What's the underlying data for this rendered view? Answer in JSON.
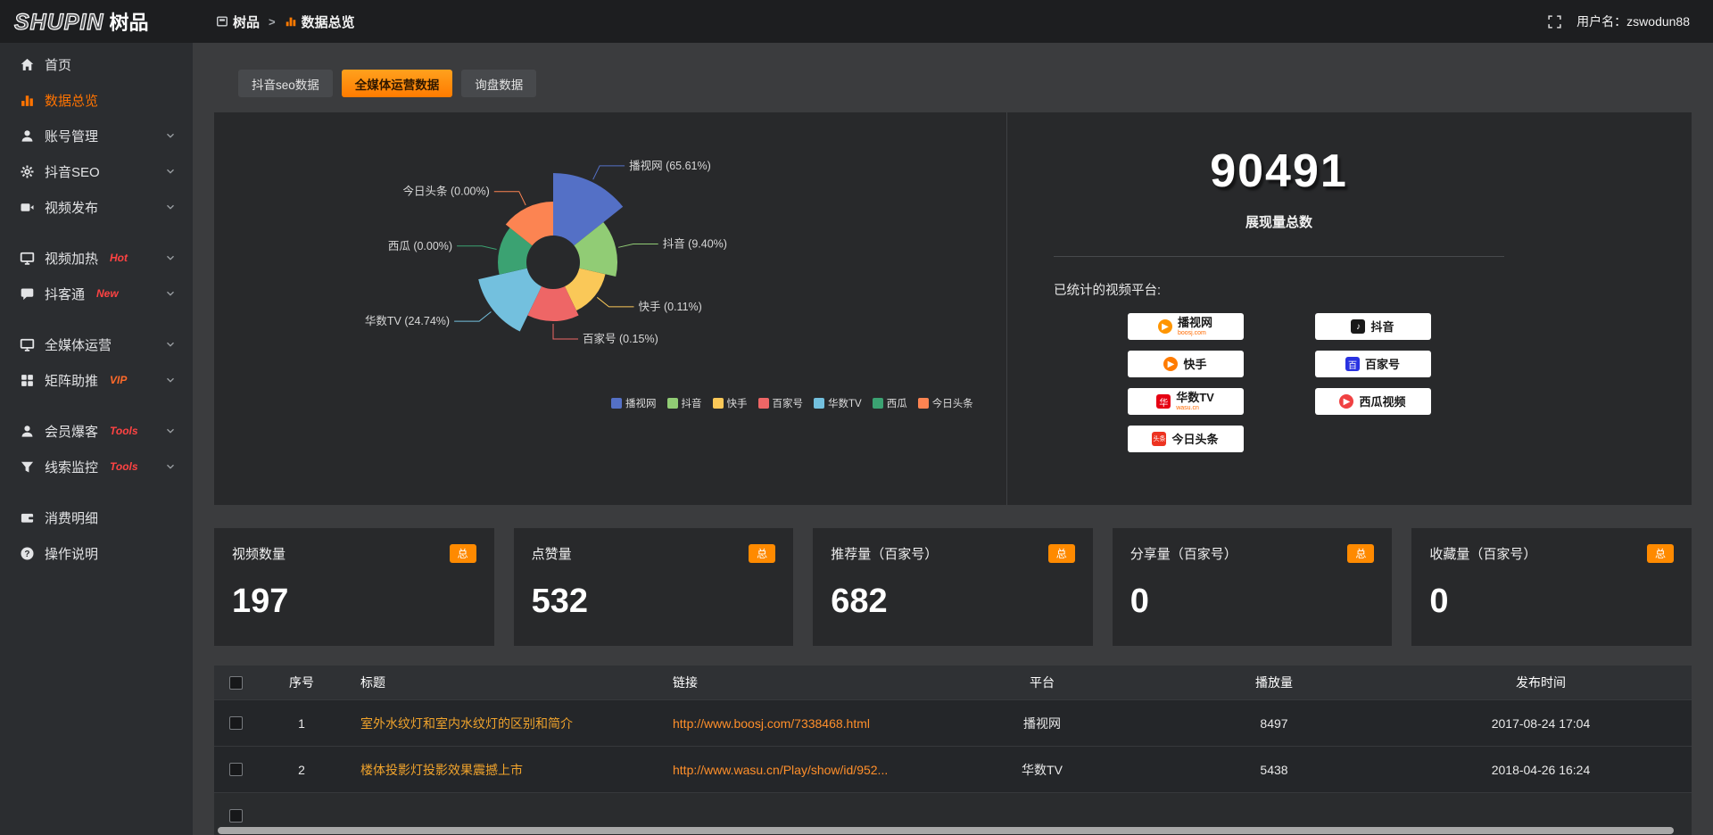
{
  "topbar": {
    "logo_en": "SHUPIN",
    "logo_cn": "树品",
    "breadcrumb": [
      {
        "key": "home",
        "label": "树品"
      },
      {
        "key": "data-overview",
        "label": "数据总览"
      }
    ],
    "breadcrumb_separator": ">",
    "username": "用户名：zswodun88"
  },
  "sidebar": {
    "groups": [
      {
        "items": [
          {
            "key": "home",
            "label": "首页",
            "icon": "home"
          },
          {
            "key": "data-overview",
            "label": "数据总览",
            "icon": "chart",
            "active": true
          },
          {
            "key": "account-management",
            "label": "账号管理",
            "icon": "user",
            "chevron": true
          },
          {
            "key": "douyin-seo",
            "label": "抖音SEO",
            "icon": "gear",
            "chevron": true
          },
          {
            "key": "video-publish",
            "label": "视频发布",
            "icon": "video",
            "chevron": true
          }
        ]
      },
      {
        "items": [
          {
            "key": "video-heating",
            "label": "视频加热",
            "icon": "monitor",
            "badge": "Hot",
            "badge_color": "#ff4343",
            "chevron": true
          },
          {
            "key": "douketong",
            "label": "抖客通",
            "icon": "chat",
            "badge": "New",
            "badge_color": "#ff4343",
            "chevron": true
          }
        ]
      },
      {
        "items": [
          {
            "key": "media-operation",
            "label": "全媒体运营",
            "icon": "monitor",
            "chevron": true
          },
          {
            "key": "matrix-boost",
            "label": "矩阵助推",
            "icon": "grid",
            "badge": "VIP",
            "badge_color": "#ff6a2a",
            "chevron": true
          }
        ]
      },
      {
        "items": [
          {
            "key": "member-burst",
            "label": "会员爆客",
            "icon": "user",
            "badge": "Tools",
            "badge_color": "#ff4343",
            "chevron": true
          },
          {
            "key": "lead-monitor",
            "label": "线索监控",
            "icon": "filter",
            "badge": "Tools",
            "badge_color": "#ff4343",
            "chevron": true
          }
        ]
      },
      {
        "items": [
          {
            "key": "consumption-detail",
            "label": "消费明细",
            "icon": "wallet"
          },
          {
            "key": "operation-guide",
            "label": "操作说明",
            "icon": "help"
          }
        ]
      }
    ]
  },
  "tabs": [
    {
      "key": "douyin-seo-data",
      "label": "抖音seo数据"
    },
    {
      "key": "media-operation-data",
      "label": "全媒体运营数据",
      "active": true
    },
    {
      "key": "inquiry-data",
      "label": "询盘数据"
    }
  ],
  "chart_data": {
    "type": "pie",
    "variant": "rose",
    "title": "",
    "categories": [
      "播视网",
      "抖音",
      "快手",
      "百家号",
      "华数TV",
      "西瓜",
      "今日头条"
    ],
    "values": [
      65.61,
      9.4,
      0.11,
      0.15,
      24.74,
      0.0,
      0.0
    ],
    "unit": "%",
    "colors": [
      "#5470c6",
      "#91cc75",
      "#fac858",
      "#ee6666",
      "#73c0de",
      "#3ba272",
      "#fc8452"
    ],
    "labels": [
      "播视网 (65.61%)",
      "抖音 (9.40%)",
      "快手 (0.11%)",
      "百家号 (0.15%)",
      "华数TV (24.74%)",
      "西瓜 (0.00%)",
      "今日头条 (0.00%)"
    ],
    "legend": [
      "播视网",
      "抖音",
      "快手",
      "百家号",
      "华数TV",
      "西瓜",
      "今日头条"
    ],
    "legend_position": "bottom",
    "radius_hints": [
      100,
      72,
      60,
      66,
      86,
      62,
      68
    ]
  },
  "summary": {
    "total": "90491",
    "total_label": "展现量总数",
    "platforms_label": "已统计的视频平台:",
    "platforms": [
      {
        "name": "播视网",
        "sub": "boosj.com",
        "icon_char": "▶",
        "icon_bg": "#ff9500",
        "icon_shape": "circle"
      },
      {
        "name": "抖音",
        "icon_char": "♪",
        "icon_bg": "#1a1a1a",
        "icon_shape": "square"
      },
      {
        "name": "快手",
        "icon_char": "▶",
        "icon_bg": "#ff7b00",
        "icon_shape": "circle"
      },
      {
        "name": "百家号",
        "icon_char": "百",
        "icon_bg": "#2932e1",
        "icon_shape": "square"
      },
      {
        "name": "华数TV",
        "sub": "wasu.cn",
        "icon_char": "华",
        "icon_bg": "#e60012",
        "icon_shape": "square"
      },
      {
        "name": "西瓜视频",
        "icon_char": "▶",
        "icon_bg": "#f04142",
        "icon_shape": "circle"
      },
      {
        "name": "今日头条",
        "icon_char": "头条",
        "icon_bg": "#ed3321",
        "icon_shape": "square"
      }
    ]
  },
  "stat_cards": [
    {
      "label": "视频数量",
      "badge": "总",
      "value": "197"
    },
    {
      "label": "点赞量",
      "badge": "总",
      "value": "532"
    },
    {
      "label": "推荐量（百家号）",
      "badge": "总",
      "value": "682"
    },
    {
      "label": "分享量（百家号）",
      "badge": "总",
      "value": "0"
    },
    {
      "label": "收藏量（百家号）",
      "badge": "总",
      "value": "0"
    }
  ],
  "table": {
    "headers": [
      "序号",
      "标题",
      "链接",
      "平台",
      "播放量",
      "发布时间"
    ],
    "rows": [
      {
        "index": "1",
        "title": "室外水纹灯和室内水纹灯的区别和简介",
        "link": "http://www.boosj.com/7338468.html",
        "platform": "播视网",
        "plays": "8497",
        "time": "2017-08-24 17:04"
      },
      {
        "index": "2",
        "title": "楼体投影灯投影效果震撼上市",
        "link": "http://www.wasu.cn/Play/show/id/952...",
        "platform": "华数TV",
        "plays": "5438",
        "time": "2018-04-26 16:24"
      }
    ]
  },
  "colors": {
    "accent": "#ff7b00",
    "panel": "#28292b",
    "title_link": "#f0a32c",
    "url_link": "#ff8f2a"
  }
}
